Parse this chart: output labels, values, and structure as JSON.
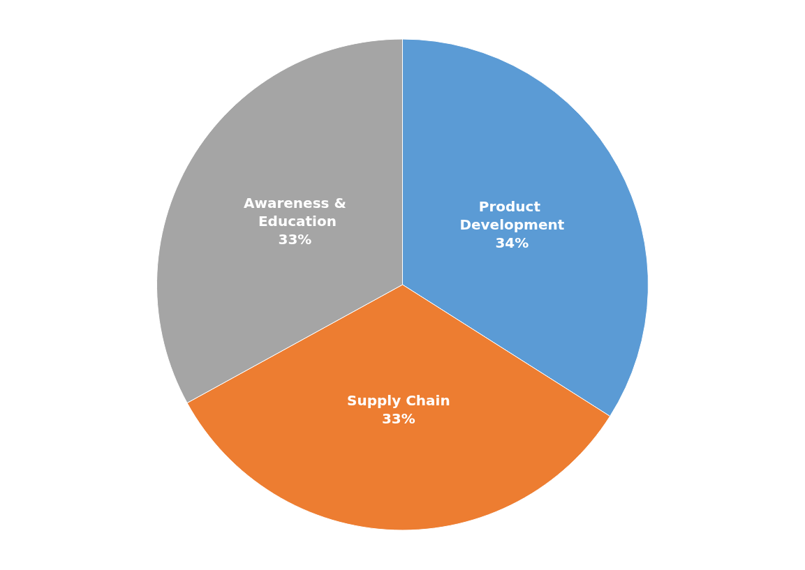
{
  "chart_data": {
    "type": "pie",
    "categories": [
      "Product Development",
      "Supply Chain",
      "Awareness & Education"
    ],
    "values": [
      34,
      33,
      33
    ],
    "colors": [
      "#5b9bd5",
      "#ed7d31",
      "#a5a5a5"
    ],
    "value_labels": [
      "34%",
      "33%",
      "33%"
    ]
  }
}
